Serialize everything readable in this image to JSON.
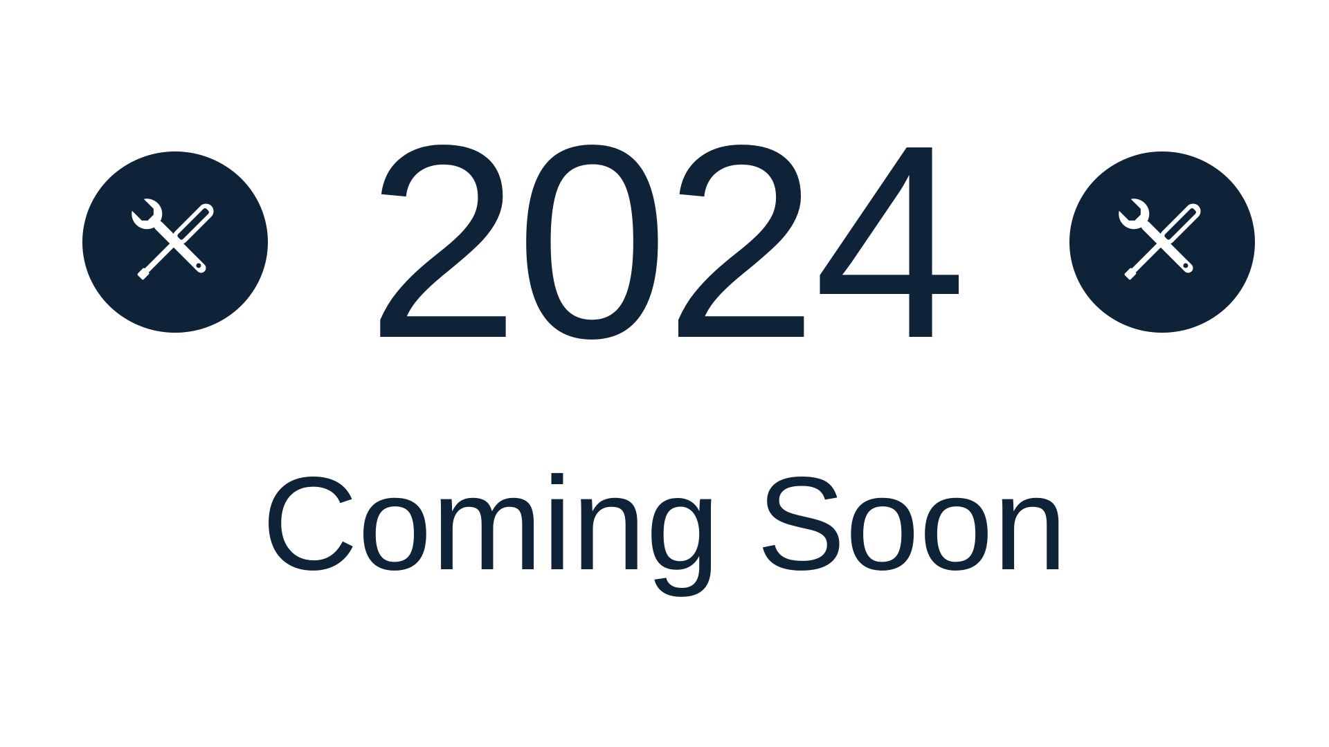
{
  "hero": {
    "year": "2024",
    "tagline": "Coming Soon"
  },
  "icons": {
    "left": "tools-icon",
    "right": "tools-icon"
  },
  "colors": {
    "primary": "#0e2238",
    "background": "#ffffff",
    "icon_glyph": "#ffffff"
  }
}
